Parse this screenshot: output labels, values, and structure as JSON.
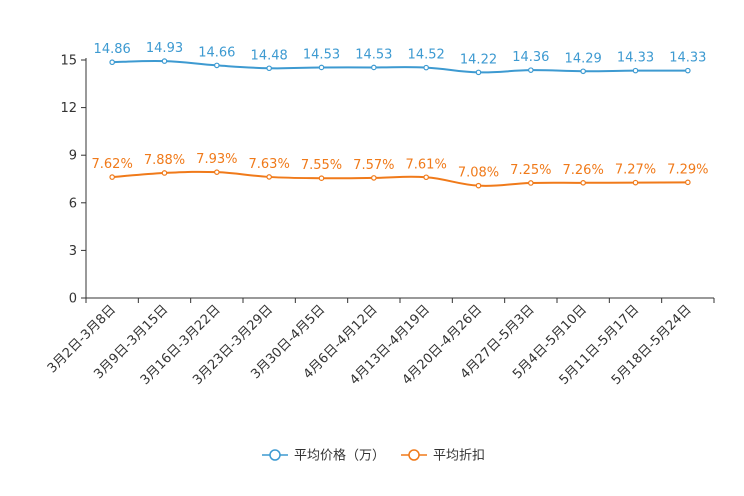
{
  "chart_data": {
    "type": "line",
    "categories": [
      "3月2日-3月8日",
      "3月9日-3月15日",
      "3月16日-3月22日",
      "3月23日-3月29日",
      "3月30日-4月5日",
      "4月6日-4月12日",
      "4月13日-4月19日",
      "4月20日-4月26日",
      "4月27日-5月3日",
      "5月4日-5月10日",
      "5月11日-5月17日",
      "5月18日-5月24日"
    ],
    "ylim": [
      0,
      15
    ],
    "yticks": [
      0,
      3,
      6,
      9,
      12,
      15
    ],
    "series": [
      {
        "name": "平均价格（万）",
        "color": "#3d9ad1",
        "values": [
          14.86,
          14.93,
          14.66,
          14.48,
          14.53,
          14.53,
          14.52,
          14.22,
          14.36,
          14.29,
          14.33,
          14.33
        ],
        "labels": [
          "14.86",
          "14.93",
          "14.66",
          "14.48",
          "14.53",
          "14.53",
          "14.52",
          "14.22",
          "14.36",
          "14.29",
          "14.33",
          "14.33"
        ]
      },
      {
        "name": "平均折扣",
        "color": "#f07a1a",
        "values": [
          7.62,
          7.88,
          7.93,
          7.63,
          7.55,
          7.57,
          7.61,
          7.08,
          7.25,
          7.26,
          7.27,
          7.29
        ],
        "labels": [
          "7.62%",
          "7.88%",
          "7.93%",
          "7.63%",
          "7.55%",
          "7.57%",
          "7.61%",
          "7.08%",
          "7.25%",
          "7.26%",
          "7.27%",
          "7.29%"
        ]
      }
    ],
    "legend_position": "bottom-center"
  }
}
